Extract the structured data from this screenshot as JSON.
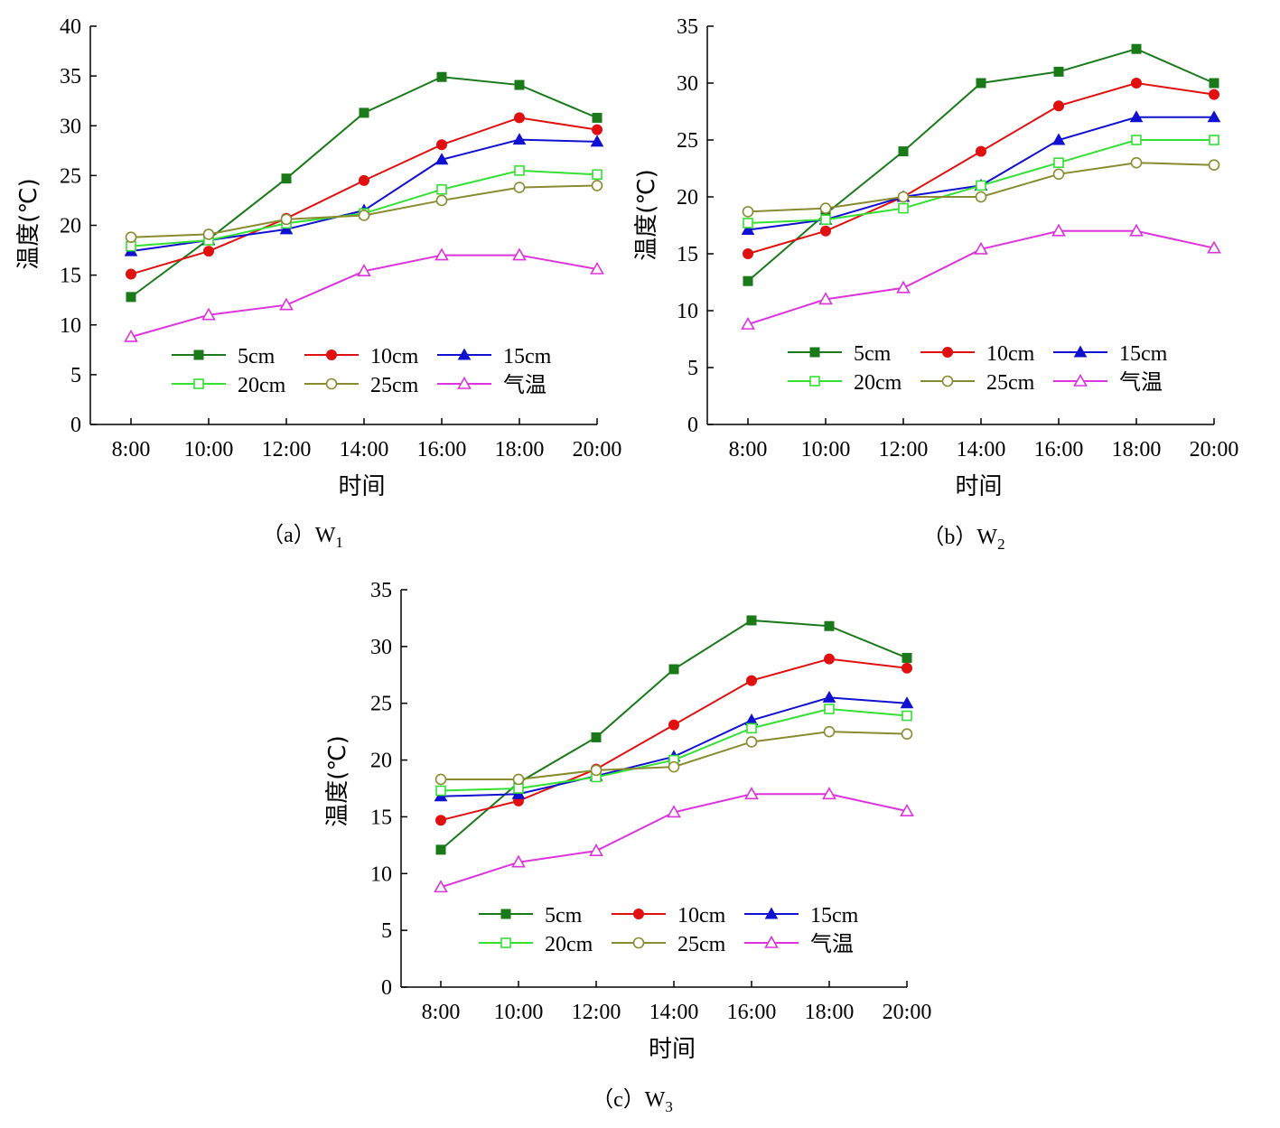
{
  "colors": {
    "5cm": "#1a7a1a",
    "10cm": "#e01010",
    "15cm": "#1010d0",
    "20cm": "#33e033",
    "25cm": "#8a8a30",
    "air": "#dd33dd"
  },
  "chart_data": [
    {
      "type": "line",
      "caption_prefix": "（a）W",
      "caption_sub": "1",
      "xlabel": "时间",
      "ylabel": "温度(℃)",
      "categories": [
        "8:00",
        "10:00",
        "12:00",
        "14:00",
        "16:00",
        "18:00",
        "20:00"
      ],
      "ylim": [
        0,
        40
      ],
      "yticks": [
        0,
        5,
        10,
        15,
        20,
        25,
        30,
        35,
        40
      ],
      "legend_position": "lower-center",
      "series": [
        {
          "name": "5cm",
          "key": "5cm",
          "marker": "square-filled",
          "values": [
            12.8,
            18.6,
            24.7,
            31.3,
            34.9,
            34.1,
            30.8
          ]
        },
        {
          "name": "10cm",
          "key": "10cm",
          "marker": "circle-filled",
          "values": [
            15.1,
            17.4,
            20.7,
            24.5,
            28.1,
            30.8,
            29.6
          ]
        },
        {
          "name": "15cm",
          "key": "15cm",
          "marker": "triangle-filled",
          "values": [
            17.4,
            18.5,
            19.6,
            21.5,
            26.6,
            28.6,
            28.4
          ]
        },
        {
          "name": "20cm",
          "key": "20cm",
          "marker": "square-open",
          "values": [
            17.9,
            18.5,
            20.2,
            21.2,
            23.6,
            25.5,
            25.1
          ]
        },
        {
          "name": "25cm",
          "key": "25cm",
          "marker": "circle-open",
          "values": [
            18.8,
            19.1,
            20.6,
            21.0,
            22.5,
            23.8,
            24.0
          ]
        },
        {
          "name": "气温",
          "key": "air",
          "marker": "triangle-open",
          "values": [
            8.8,
            11.0,
            12.0,
            15.4,
            17.0,
            17.0,
            15.6
          ]
        }
      ]
    },
    {
      "type": "line",
      "caption_prefix": "（b）W",
      "caption_sub": "2",
      "xlabel": "时间",
      "ylabel": "温度(℃)",
      "categories": [
        "8:00",
        "10:00",
        "12:00",
        "14:00",
        "16:00",
        "18:00",
        "20:00"
      ],
      "ylim": [
        0,
        35
      ],
      "yticks": [
        0,
        5,
        10,
        15,
        20,
        25,
        30,
        35
      ],
      "legend_position": "lower-center",
      "series": [
        {
          "name": "5cm",
          "key": "5cm",
          "marker": "square-filled",
          "values": [
            12.6,
            18.5,
            24.0,
            30.0,
            31.0,
            33.0,
            30.0
          ]
        },
        {
          "name": "10cm",
          "key": "10cm",
          "marker": "circle-filled",
          "values": [
            15.0,
            17.0,
            20.0,
            24.0,
            28.0,
            30.0,
            29.0
          ]
        },
        {
          "name": "15cm",
          "key": "15cm",
          "marker": "triangle-filled",
          "values": [
            17.1,
            18.0,
            20.0,
            21.0,
            25.0,
            27.0,
            27.0
          ]
        },
        {
          "name": "20cm",
          "key": "20cm",
          "marker": "square-open",
          "values": [
            17.7,
            18.0,
            19.0,
            21.0,
            23.0,
            25.0,
            25.0
          ]
        },
        {
          "name": "25cm",
          "key": "25cm",
          "marker": "circle-open",
          "values": [
            18.7,
            19.0,
            20.0,
            20.0,
            22.0,
            23.0,
            22.8
          ]
        },
        {
          "name": "气温",
          "key": "air",
          "marker": "triangle-open",
          "values": [
            8.8,
            11.0,
            12.0,
            15.4,
            17.0,
            17.0,
            15.5
          ]
        }
      ]
    },
    {
      "type": "line",
      "caption_prefix": "（c）W",
      "caption_sub": "3",
      "xlabel": "时间",
      "ylabel": "温度(℃)",
      "categories": [
        "8:00",
        "10:00",
        "12:00",
        "14:00",
        "16:00",
        "18:00",
        "20:00"
      ],
      "ylim": [
        0,
        35
      ],
      "yticks": [
        0,
        5,
        10,
        15,
        20,
        25,
        30,
        35
      ],
      "legend_position": "lower-center",
      "series": [
        {
          "name": "5cm",
          "key": "5cm",
          "marker": "square-filled",
          "values": [
            12.1,
            18.0,
            22.0,
            28.0,
            32.3,
            31.8,
            29.0
          ]
        },
        {
          "name": "10cm",
          "key": "10cm",
          "marker": "circle-filled",
          "values": [
            14.7,
            16.4,
            19.2,
            23.1,
            27.0,
            28.9,
            28.1
          ]
        },
        {
          "name": "15cm",
          "key": "15cm",
          "marker": "triangle-filled",
          "values": [
            16.8,
            17.0,
            18.6,
            20.3,
            23.5,
            25.5,
            25.0
          ]
        },
        {
          "name": "20cm",
          "key": "20cm",
          "marker": "square-open",
          "values": [
            17.3,
            17.5,
            18.5,
            20.0,
            22.8,
            24.5,
            23.9
          ]
        },
        {
          "name": "25cm",
          "key": "25cm",
          "marker": "circle-open",
          "values": [
            18.3,
            18.3,
            19.1,
            19.4,
            21.6,
            22.5,
            22.3
          ]
        },
        {
          "name": "气温",
          "key": "air",
          "marker": "triangle-open",
          "values": [
            8.8,
            11.0,
            12.0,
            15.4,
            17.0,
            17.0,
            15.5
          ]
        }
      ]
    }
  ]
}
